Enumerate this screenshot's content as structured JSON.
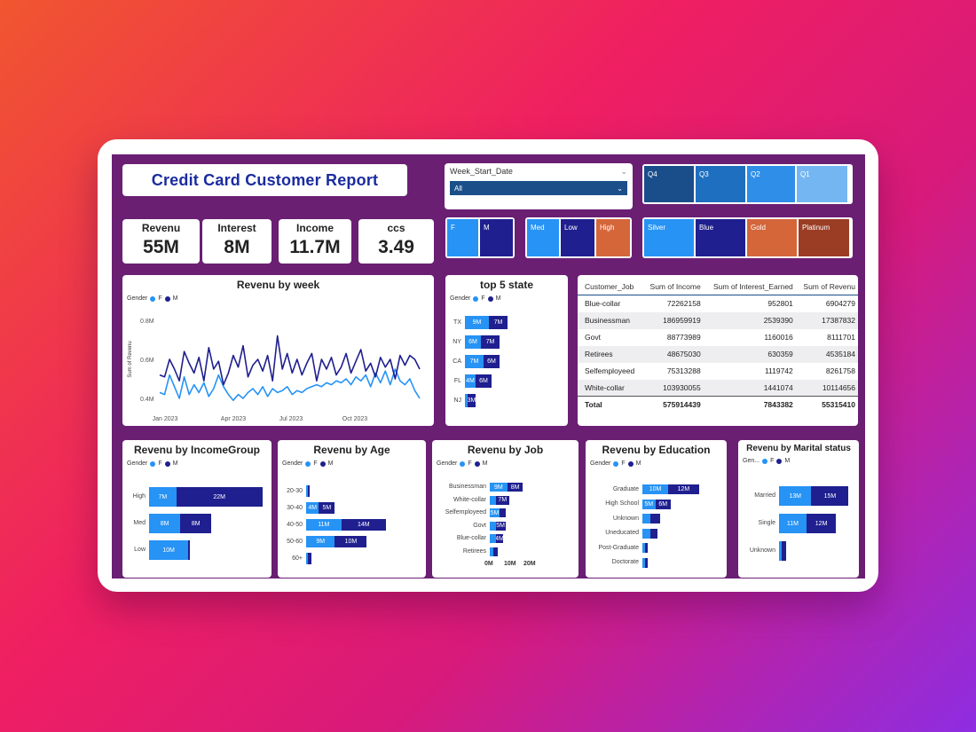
{
  "title": "Credit Card Customer Report",
  "slicer": {
    "label": "Week_Start_Date",
    "value": "All"
  },
  "quarter_tiles": [
    {
      "label": "Q4",
      "color": "#1a4e8a"
    },
    {
      "label": "Q3",
      "color": "#1f6fc0"
    },
    {
      "label": "Q2",
      "color": "#2e8ee8"
    },
    {
      "label": "Q1",
      "color": "#74b6f2"
    }
  ],
  "gender_tiles": [
    {
      "label": "F",
      "color": "#2693f5"
    },
    {
      "label": "M",
      "color": "#1f1f8f"
    }
  ],
  "income_tiles": [
    {
      "label": "Med",
      "color": "#2693f5"
    },
    {
      "label": "Low",
      "color": "#1f1f8f"
    },
    {
      "label": "High",
      "color": "#d4663a"
    }
  ],
  "card_tiles": [
    {
      "label": "Silver",
      "color": "#2693f5"
    },
    {
      "label": "Blue",
      "color": "#1f1f8f"
    },
    {
      "label": "Gold",
      "color": "#d4663a"
    },
    {
      "label": "Platinum",
      "color": "#9b3d25"
    }
  ],
  "kpis": [
    {
      "label": "Revenu",
      "value": "55M"
    },
    {
      "label": "Interest",
      "value": "8M"
    },
    {
      "label": "Income",
      "value": "11.7M"
    },
    {
      "label": "ccs",
      "value": "3.49"
    }
  ],
  "legend": {
    "title": "Gender",
    "f": "F",
    "m": "M",
    "title_short": "Gen..."
  },
  "colors": {
    "F": "#2693f5",
    "M": "#1f1f8f"
  },
  "job_table": {
    "headers": [
      "Customer_Job",
      "Sum of Income",
      "Sum of Interest_Earned",
      "Sum of Revenu"
    ],
    "rows": [
      [
        "Blue-collar",
        "72262158",
        "952801",
        "6904279"
      ],
      [
        "Businessman",
        "186959919",
        "2539390",
        "17387832"
      ],
      [
        "Govt",
        "88773989",
        "1160016",
        "8111701"
      ],
      [
        "Retirees",
        "48675030",
        "630359",
        "4535184"
      ],
      [
        "Selfemployeed",
        "75313288",
        "1119742",
        "8261758"
      ],
      [
        "White-collar",
        "103930055",
        "1441074",
        "10114656"
      ]
    ],
    "total": [
      "Total",
      "575914439",
      "7843382",
      "55315410"
    ]
  },
  "chart_data": [
    {
      "type": "line",
      "title": "Revenu by week",
      "ylabel": "Sum of Revenu",
      "xticks": [
        "Jan 2023",
        "Apr 2023",
        "Jul 2023",
        "Oct 2023"
      ],
      "yticks": [
        "0.8M",
        "0.6M",
        "0.4M"
      ],
      "ylim": [
        0.35,
        0.85
      ],
      "series": [
        {
          "name": "F",
          "values": [
            0.43,
            0.42,
            0.52,
            0.46,
            0.4,
            0.51,
            0.42,
            0.47,
            0.43,
            0.48,
            0.41,
            0.45,
            0.52,
            0.46,
            0.42,
            0.39,
            0.42,
            0.4,
            0.43,
            0.45,
            0.42,
            0.46,
            0.41,
            0.45,
            0.43,
            0.44,
            0.46,
            0.42,
            0.44,
            0.43,
            0.45,
            0.46,
            0.47,
            0.46,
            0.48,
            0.47,
            0.49,
            0.48,
            0.5,
            0.47,
            0.51,
            0.49,
            0.52,
            0.46,
            0.53,
            0.48,
            0.54,
            0.47,
            0.55,
            0.49,
            0.47,
            0.5,
            0.44,
            0.4
          ]
        },
        {
          "name": "M",
          "values": [
            0.52,
            0.51,
            0.6,
            0.55,
            0.49,
            0.64,
            0.58,
            0.53,
            0.61,
            0.49,
            0.66,
            0.55,
            0.59,
            0.47,
            0.53,
            0.62,
            0.56,
            0.67,
            0.51,
            0.57,
            0.6,
            0.54,
            0.62,
            0.49,
            0.72,
            0.55,
            0.63,
            0.53,
            0.6,
            0.52,
            0.58,
            0.63,
            0.49,
            0.6,
            0.55,
            0.61,
            0.52,
            0.56,
            0.63,
            0.53,
            0.59,
            0.65,
            0.54,
            0.58,
            0.51,
            0.61,
            0.56,
            0.6,
            0.5,
            0.62,
            0.57,
            0.62,
            0.6,
            0.55
          ]
        }
      ]
    },
    {
      "type": "bar",
      "title": "top 5 state",
      "categories": [
        "TX",
        "NY",
        "CA",
        "FL",
        "NJ"
      ],
      "series": [
        {
          "name": "F",
          "values": [
            9,
            6,
            7,
            4,
            1
          ]
        },
        {
          "name": "M",
          "values": [
            7,
            7,
            6,
            6,
            3
          ]
        }
      ],
      "labels": [
        [
          "9M",
          "7M"
        ],
        [
          "6M",
          "7M"
        ],
        [
          "7M",
          "6M"
        ],
        [
          "4M",
          "6M"
        ],
        [
          "",
          "3M"
        ]
      ]
    },
    {
      "type": "bar",
      "title": "Revenu by IncomeGroup",
      "categories": [
        "High",
        "Med",
        "Low"
      ],
      "series": [
        {
          "name": "F",
          "values": [
            7,
            8,
            10
          ]
        },
        {
          "name": "M",
          "values": [
            22,
            8,
            0.3
          ]
        }
      ],
      "labels": [
        [
          "7M",
          "22M"
        ],
        [
          "8M",
          "8M"
        ],
        [
          "10M",
          ""
        ]
      ]
    },
    {
      "type": "bar",
      "title": "Revenu by Age",
      "categories": [
        "20-30",
        "30-40",
        "40-50",
        "50-60",
        "60+"
      ],
      "series": [
        {
          "name": "F",
          "values": [
            0.3,
            4,
            11,
            9,
            0.5
          ]
        },
        {
          "name": "M",
          "values": [
            0.3,
            5,
            14,
            10,
            1
          ]
        }
      ],
      "labels": [
        [
          "",
          ""
        ],
        [
          "4M",
          "5M"
        ],
        [
          "11M",
          "14M"
        ],
        [
          "9M",
          "10M"
        ],
        [
          "",
          ""
        ]
      ]
    },
    {
      "type": "bar",
      "title": "Revenu by Job",
      "categories": [
        "Businessman",
        "White-collar",
        "Selfemployeed",
        "Govt",
        "Blue-collar",
        "Retirees"
      ],
      "xticks": [
        "0M",
        "10M",
        "20M"
      ],
      "series": [
        {
          "name": "F",
          "values": [
            9,
            3,
            5,
            3,
            3,
            2
          ]
        },
        {
          "name": "M",
          "values": [
            8,
            7,
            3,
            5,
            4,
            2
          ]
        }
      ],
      "labels": [
        [
          "9M",
          "8M"
        ],
        [
          "",
          "7M"
        ],
        [
          "5M",
          ""
        ],
        [
          "",
          "5M"
        ],
        [
          "",
          "4M"
        ],
        [
          "",
          ""
        ]
      ]
    },
    {
      "type": "bar",
      "title": "Revenu by Education",
      "categories": [
        "Graduate",
        "High School",
        "Unknown",
        "Uneducated",
        "Post-Graduate",
        "Doctorate"
      ],
      "series": [
        {
          "name": "F",
          "values": [
            10,
            5,
            3,
            3,
            1,
            1
          ]
        },
        {
          "name": "M",
          "values": [
            12,
            6,
            4,
            3,
            1,
            1
          ]
        }
      ],
      "labels": [
        [
          "10M",
          "12M"
        ],
        [
          "5M",
          "6M"
        ],
        [
          "",
          ""
        ],
        [
          "",
          ""
        ],
        [
          "",
          ""
        ],
        [
          "",
          ""
        ]
      ]
    },
    {
      "type": "bar",
      "title": "Revenu by Marital status",
      "categories": [
        "Married",
        "Single",
        "Unknown"
      ],
      "series": [
        {
          "name": "F",
          "values": [
            13,
            11,
            1
          ]
        },
        {
          "name": "M",
          "values": [
            15,
            12,
            2
          ]
        }
      ],
      "labels": [
        [
          "13M",
          "15M"
        ],
        [
          "11M",
          "12M"
        ],
        [
          "",
          ""
        ]
      ]
    }
  ]
}
